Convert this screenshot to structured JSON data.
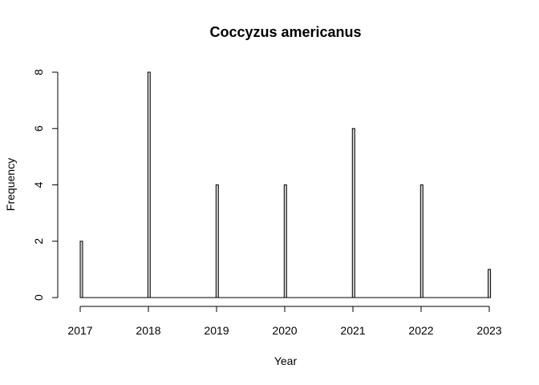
{
  "chart_data": {
    "type": "bar",
    "title": "Coccyzus americanus",
    "xlabel": "Year",
    "ylabel": "Frequency",
    "xlim": [
      2017,
      2023
    ],
    "ylim": [
      0,
      8
    ],
    "x_ticks": [
      "2017",
      "2018",
      "2019",
      "2020",
      "2021",
      "2022",
      "2023"
    ],
    "y_ticks": [
      "0",
      "2",
      "4",
      "6",
      "8"
    ],
    "bars": [
      {
        "x": 2017,
        "value": 2
      },
      {
        "x": 2018,
        "value": 8
      },
      {
        "x": 2019,
        "value": 4
      },
      {
        "x": 2020,
        "value": 4
      },
      {
        "x": 2021,
        "value": 6
      },
      {
        "x": 2022,
        "value": 4
      },
      {
        "x": 2023,
        "value": 1
      }
    ],
    "bar_fill": "#d3d3d3",
    "grid": false,
    "legend": "none"
  }
}
